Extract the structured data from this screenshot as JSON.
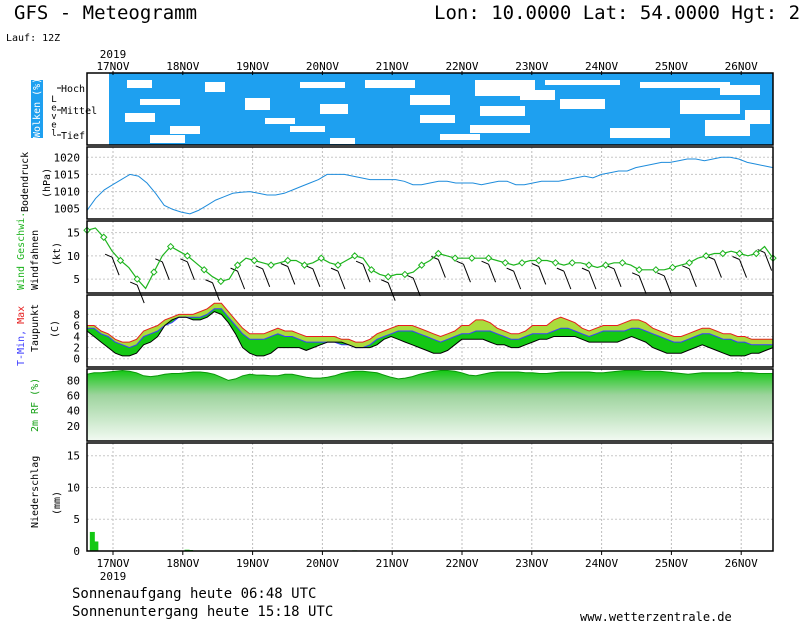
{
  "header": {
    "title": "GFS - Meteogramm",
    "location": "Lon: 10.0000 Lat: 54.0000 Hgt: 2",
    "run": "Lauf: 12Z"
  },
  "footer": {
    "sunrise": "Sonnenaufgang heute 06:48 UTC",
    "sunset": "Sonnenuntergang heute 15:18 UTC",
    "website": "www.wetterzentrale.de"
  },
  "colors": {
    "cloud": "#1ea0f0",
    "pressure": "#1e8cdc",
    "wind_speed": "#1eb41e",
    "tmin": "#3c3cff",
    "tmax": "#e61e1e",
    "temp_fill_low": "#14c814",
    "temp_fill_high": "#aadc3c",
    "rh": "#14c814",
    "precip": "#14c814"
  },
  "chart_data": {
    "type": "meteogram",
    "x_axis": {
      "year": "2019",
      "day_labels": [
        "17NOV",
        "18NOV",
        "19NOV",
        "20NOV",
        "21NOV",
        "22NOV",
        "23NOV",
        "24NOV",
        "25NOV",
        "26NOV"
      ]
    },
    "panels": [
      {
        "id": "clouds",
        "ylabel": "Wolken (%)",
        "level_word": "Level",
        "level_labels": [
          "Hoch",
          "Mittel",
          "Tief"
        ]
      },
      {
        "id": "pressure",
        "ylabel": "Bodendruck",
        "unit": "(hPa)",
        "yticks": [
          1005,
          1010,
          1015,
          1020
        ],
        "ylim": [
          1002,
          1023
        ],
        "series": [
          {
            "name": "Bodendruck",
            "values": [
              1004.5,
              1008,
              1010.5,
              1012,
              1013.5,
              1015,
              1014.5,
              1012.5,
              1009.5,
              1006,
              1004.8,
              1004,
              1003.5,
              1004.5,
              1006,
              1007.5,
              1008.5,
              1009.5,
              1009.8,
              1010,
              1009.5,
              1009,
              1009,
              1009.5,
              1010.5,
              1011.5,
              1012.5,
              1013.5,
              1015,
              1015,
              1015,
              1014.5,
              1014,
              1013.5,
              1013.5,
              1013.5,
              1013.5,
              1013,
              1012,
              1012,
              1012.5,
              1013,
              1013,
              1012.5,
              1012.5,
              1012.5,
              1012,
              1012.5,
              1013,
              1013,
              1012,
              1012,
              1012.5,
              1013,
              1013,
              1013,
              1013.5,
              1014,
              1014.5,
              1014,
              1015,
              1015.5,
              1016,
              1016,
              1017,
              1017.5,
              1018,
              1018.5,
              1018.5,
              1019,
              1019.5,
              1019.5,
              1019,
              1019.5,
              1020,
              1020,
              1019.5,
              1018.5,
              1018,
              1017.5,
              1017
            ]
          }
        ]
      },
      {
        "id": "wind",
        "ylabel_a": "Wind Geschwi.",
        "ylabel_b": "Windfahnen",
        "unit": "(kt)",
        "yticks": [
          5,
          10,
          15
        ],
        "ylim": [
          2,
          17.5
        ],
        "series": [
          {
            "name": "Wind Geschwi.",
            "values": [
              15.5,
              16,
              14,
              11,
              9,
              7.5,
              5,
              3,
              6.5,
              10,
              12,
              11,
              10,
              8.5,
              7,
              5.5,
              4.5,
              5,
              8,
              9.5,
              9,
              8.5,
              8,
              8.5,
              9,
              9,
              8,
              8.5,
              9.5,
              8.5,
              8,
              9,
              10,
              9.5,
              7,
              6,
              5.5,
              6,
              6,
              6.5,
              8,
              9,
              10.5,
              10,
              9.5,
              9.5,
              9.5,
              9.5,
              9.5,
              9,
              8.5,
              8,
              8.5,
              9,
              9,
              9,
              8.5,
              8,
              8.5,
              8.5,
              8,
              7.5,
              8,
              8.5,
              8.5,
              8,
              7,
              7,
              7,
              7,
              7.5,
              8,
              8.5,
              9.5,
              10,
              10.5,
              10.5,
              11,
              10.5,
              10,
              10.5,
              12,
              9.5
            ]
          }
        ]
      },
      {
        "id": "temperature",
        "ylabel_a": "T-Min, Max",
        "ylabel_b": "Taupunkt",
        "unit": "(C)",
        "yticks": [
          0,
          2,
          4,
          6,
          8
        ],
        "ylim": [
          -1.5,
          11.5
        ],
        "series": [
          {
            "name": "T-Max",
            "values": [
              6,
              6,
              5,
              4.5,
              3.5,
              3,
              3,
              3.5,
              5,
              5.5,
              6,
              7,
              7.5,
              8,
              8,
              8,
              8.5,
              9,
              10,
              10,
              8.5,
              7,
              5.5,
              4.5,
              4.5,
              4.5,
              5,
              5.5,
              5,
              5,
              4.5,
              4,
              4,
              4,
              4,
              4,
              3.5,
              3.5,
              3,
              3,
              3.5,
              4.5,
              5,
              5.5,
              6,
              6,
              6,
              5.5,
              5,
              4.5,
              4,
              4.5,
              5,
              6,
              6,
              7,
              7,
              6.5,
              5.5,
              5,
              4.5,
              4.5,
              5,
              6,
              6,
              6,
              7,
              7.5,
              7,
              6.5,
              5.5,
              5,
              5.5,
              6,
              6,
              6,
              6.5,
              7,
              7,
              6.5,
              5.5,
              5,
              4.5,
              4,
              4,
              4.5,
              5,
              5.5,
              5.5,
              5,
              4.5,
              4.5,
              4,
              4,
              3.5,
              3.5,
              3.5,
              3.5
            ]
          },
          {
            "name": "T-Min",
            "values": [
              5.5,
              5.5,
              4.5,
              4,
              3,
              2.5,
              2,
              2.5,
              4,
              4.5,
              5,
              6,
              6.5,
              7.5,
              7.5,
              7.5,
              7.5,
              8,
              9,
              9,
              7.5,
              6,
              4.5,
              3.5,
              3.5,
              3.5,
              4,
              4.5,
              4,
              4,
              3.5,
              3,
              3,
              3,
              3,
              3,
              2.5,
              2.5,
              2,
              2,
              2.5,
              3.5,
              4,
              4.5,
              5,
              5,
              5,
              4.5,
              4,
              3.5,
              3,
              3.5,
              4,
              4.5,
              4.5,
              5,
              5,
              5,
              4.5,
              4,
              3.5,
              3.5,
              4,
              4.5,
              4.5,
              4.5,
              5,
              5.5,
              5.5,
              5,
              4.5,
              4,
              4.5,
              5,
              5,
              5,
              5,
              5.5,
              5.5,
              5,
              4.5,
              4,
              3.5,
              3,
              3,
              3.5,
              4,
              4.5,
              4.5,
              4,
              3.5,
              3.5,
              3,
              3,
              2.5,
              2.5,
              2.5,
              2.5
            ]
          },
          {
            "name": "Taupunkt",
            "values": [
              5,
              4,
              3,
              2,
              1,
              0.5,
              0.5,
              1,
              2.5,
              3,
              4,
              6,
              7,
              7.5,
              7.5,
              7,
              7,
              7.5,
              8.5,
              8,
              6.5,
              4.5,
              2,
              1,
              0.5,
              0.5,
              1,
              2,
              2,
              2,
              2,
              1.5,
              2,
              2.5,
              3,
              3,
              3,
              2.5,
              2,
              2,
              2,
              2.5,
              3.5,
              4,
              3.5,
              3,
              2.5,
              2,
              1.5,
              1,
              1,
              1.5,
              2.5,
              3.5,
              3.5,
              3.5,
              3.5,
              3,
              2.5,
              2.5,
              2,
              2,
              2.5,
              3,
              3.5,
              3.5,
              4,
              4,
              4,
              4,
              3.5,
              3,
              3,
              3,
              3,
              3,
              3.5,
              4,
              3.5,
              3,
              2,
              1.5,
              1,
              1,
              1,
              1.5,
              2,
              2.5,
              2,
              1.5,
              1,
              0.5,
              0.5,
              0.5,
              1,
              1,
              1.5,
              2
            ]
          }
        ]
      },
      {
        "id": "humidity",
        "ylabel": "2m RF (%)",
        "yticks": [
          20,
          40,
          60,
          80
        ],
        "ylim": [
          0,
          95
        ],
        "series": [
          {
            "name": "2m RF",
            "values": [
              88,
              90,
              90,
              91,
              92,
              93,
              92,
              90,
              86,
              85,
              86,
              88,
              89,
              89,
              90,
              91,
              91,
              90,
              88,
              84,
              80,
              82,
              86,
              88,
              87,
              87,
              86,
              86,
              88,
              88,
              86,
              84,
              83,
              83,
              84,
              86,
              89,
              91,
              92,
              92,
              91,
              90,
              87,
              84,
              82,
              83,
              85,
              88,
              90,
              92,
              93,
              93,
              92,
              90,
              87,
              86,
              88,
              90,
              91,
              91,
              91,
              91,
              90,
              90,
              89,
              89,
              90,
              91,
              91,
              91,
              91,
              91,
              90,
              90,
              91,
              92,
              93,
              93,
              93,
              92,
              92,
              92,
              91,
              90,
              89,
              88,
              89,
              90,
              90,
              90,
              90,
              90,
              91,
              90,
              90,
              89,
              89,
              89
            ]
          }
        ]
      },
      {
        "id": "precipitation",
        "ylabel": "Niederschlag",
        "unit": "(mm)",
        "yticks": [
          0,
          5,
          10,
          15
        ],
        "ylim": [
          0,
          17
        ],
        "bars": [
          {
            "x": 0.4,
            "value": 3
          },
          {
            "x": 0.9,
            "value": 1.5
          },
          {
            "x": 13.8,
            "value": 0.2
          },
          {
            "x": 14.3,
            "value": 0.15
          },
          {
            "x": 37.5,
            "value": 0.1
          }
        ]
      }
    ]
  }
}
